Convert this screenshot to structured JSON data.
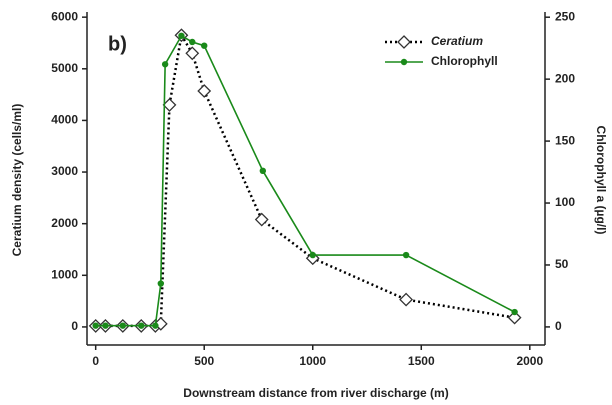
{
  "chart_data": {
    "type": "line",
    "annotation": "b)",
    "xlabel": "Downstream distance from river discharge (m)",
    "ylabel": "Ceratium density (cells/ml)",
    "y2label": "Chlorophyll a (µg/l)",
    "x": [
      0,
      45,
      125,
      210,
      275,
      300,
      340,
      395,
      445,
      500,
      765,
      1000,
      1430,
      1930
    ],
    "series": [
      {
        "name": "Ceratium",
        "color": "#000000",
        "axis": "y",
        "values": [
          20,
          20,
          20,
          20,
          20,
          60,
          4300,
          5650,
          5300,
          4570,
          2080,
          1330,
          530,
          180
        ]
      },
      {
        "name": "Chlorophyll",
        "color": "#1a8a1a",
        "axis": "y2",
        "x": [
          0,
          45,
          125,
          210,
          275,
          300,
          320,
          395,
          445,
          500,
          770,
          1000,
          1430,
          1930
        ],
        "values": [
          1,
          1,
          1,
          1,
          1,
          35,
          212,
          235,
          230,
          227,
          126,
          58,
          58,
          12
        ]
      }
    ],
    "xlim": [
      -40,
      2070
    ],
    "xticks": [
      0,
      500,
      1000,
      1500,
      2000
    ],
    "ylim": [
      -350,
      6100
    ],
    "yticks": [
      0,
      1000,
      2000,
      3000,
      4000,
      5000,
      6000
    ],
    "y2lim": [
      -14.6,
      254.2
    ],
    "y2ticks": [
      0,
      50,
      100,
      150,
      200,
      250
    ],
    "legend": "upper right"
  }
}
